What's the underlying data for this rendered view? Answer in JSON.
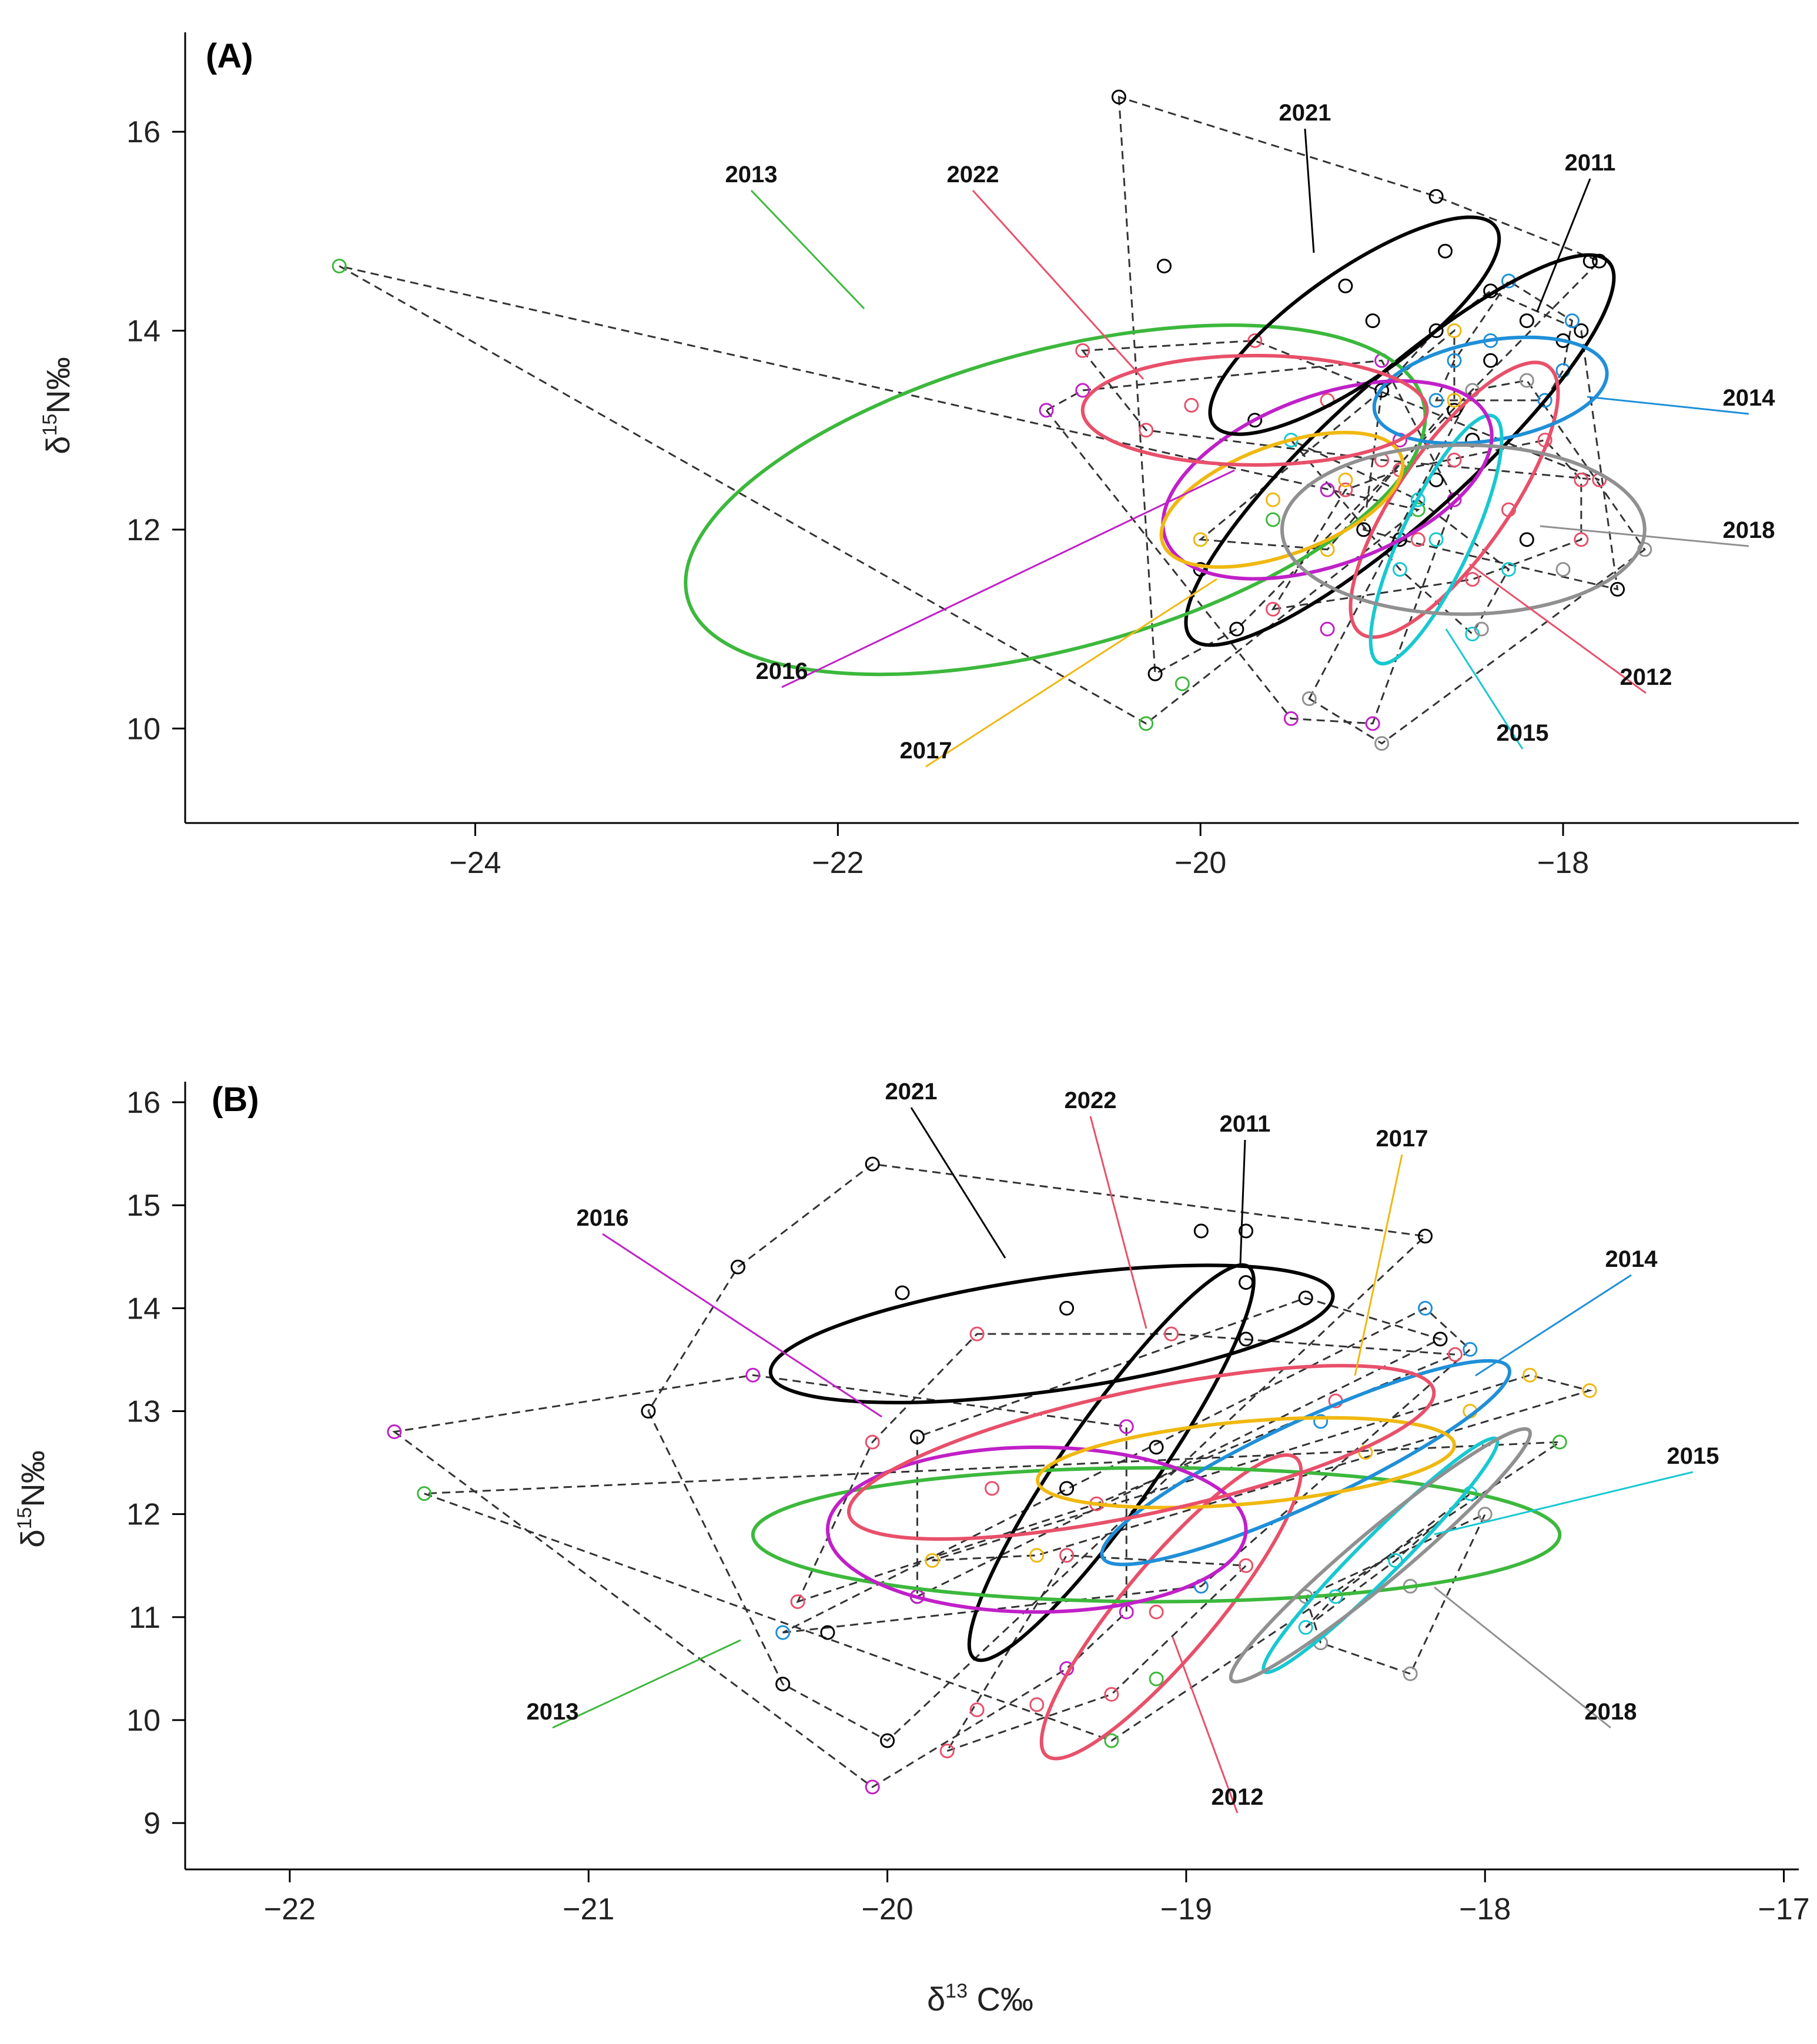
{
  "chart_data": [
    {
      "type": "scatter",
      "panel_label": "(A)",
      "xlabel": "",
      "ylabel": "δ15N‰",
      "xlim": [
        -25.6,
        -16.7
      ],
      "ylim": [
        9.05,
        17.0
      ],
      "xticks": [
        -24,
        -22,
        -20,
        -18
      ],
      "yticks": [
        10,
        12,
        14,
        16
      ],
      "xtick_labels": [
        "−24",
        "−22",
        "−20",
        "−18"
      ],
      "ytick_labels": [
        "10",
        "12",
        "14",
        "16"
      ],
      "series": [
        {
          "name": "2011",
          "color": "#000000",
          "ellipse": {
            "cx": -18.9,
            "cy": 12.8,
            "rx": 1.55,
            "ry": 0.7,
            "angle_deg": -42
          },
          "points": [
            [
              -18.7,
              14.0
            ],
            [
              -18.4,
              13.7
            ],
            [
              -18.2,
              14.1
            ],
            [
              -18.0,
              13.9
            ],
            [
              -18.5,
              12.9
            ],
            [
              -18.7,
              12.5
            ],
            [
              -19.1,
              12.0
            ],
            [
              -18.9,
              11.9
            ],
            [
              -18.2,
              11.9
            ],
            [
              -17.7,
              11.4
            ],
            [
              -18.6,
              13.2
            ],
            [
              -19.0,
              13.4
            ],
            [
              -18.4,
              14.4
            ],
            [
              -17.9,
              14.0
            ]
          ]
        },
        {
          "name": "2012",
          "color": "#e8506a",
          "ellipse": {
            "cx": -18.6,
            "cy": 12.3,
            "rx": 0.9,
            "ry": 0.55,
            "angle_deg": -55
          },
          "points": [
            [
              -18.3,
              12.2
            ],
            [
              -18.8,
              11.9
            ],
            [
              -18.9,
              12.6
            ],
            [
              -17.9,
              12.5
            ],
            [
              -18.5,
              11.5
            ],
            [
              -19.2,
              12.4
            ],
            [
              -18.1,
              12.9
            ],
            [
              -19.6,
              11.2
            ],
            [
              -18.6,
              12.7
            ],
            [
              -17.9,
              11.9
            ]
          ]
        },
        {
          "name": "2013",
          "color": "#3cb83c",
          "ellipse": {
            "cx": -20.8,
            "cy": 12.3,
            "rx": 2.1,
            "ry": 1.5,
            "angle_deg": -15
          },
          "points": [
            [
              -24.75,
              14.65
            ],
            [
              -20.3,
              10.05
            ],
            [
              -20.1,
              10.45
            ],
            [
              -19.6,
              12.1
            ],
            [
              -18.8,
              12.2
            ]
          ]
        },
        {
          "name": "2014",
          "color": "#1f8fd8",
          "ellipse": {
            "cx": -18.4,
            "cy": 13.4,
            "rx": 0.65,
            "ry": 0.5,
            "angle_deg": -10
          },
          "points": [
            [
              -18.3,
              14.5
            ],
            [
              -17.95,
              14.1
            ],
            [
              -18.6,
              13.7
            ],
            [
              -18.1,
              13.3
            ],
            [
              -18.4,
              13.9
            ],
            [
              -18.0,
              13.6
            ],
            [
              -18.7,
              13.3
            ]
          ]
        },
        {
          "name": "2015",
          "color": "#18c8d0",
          "ellipse": {
            "cx": -18.7,
            "cy": 11.9,
            "rx": 0.75,
            "ry": 0.35,
            "angle_deg": -65
          },
          "points": [
            [
              -18.5,
              10.95
            ],
            [
              -18.9,
              11.6
            ],
            [
              -18.7,
              11.9
            ],
            [
              -18.3,
              11.6
            ],
            [
              -18.8,
              12.3
            ],
            [
              -19.5,
              12.9
            ]
          ]
        },
        {
          "name": "2016",
          "color": "#c020c8",
          "ellipse": {
            "cx": -19.3,
            "cy": 12.5,
            "rx": 0.95,
            "ry": 0.85,
            "angle_deg": -20
          },
          "points": [
            [
              -20.85,
              13.2
            ],
            [
              -20.65,
              13.4
            ],
            [
              -19.5,
              10.1
            ],
            [
              -18.9,
              12.9
            ],
            [
              -19.3,
              12.4
            ],
            [
              -19.0,
              13.7
            ],
            [
              -18.6,
              12.3
            ],
            [
              -19.3,
              11.0
            ],
            [
              -19.05,
              10.05
            ]
          ]
        },
        {
          "name": "2017",
          "color": "#f0b810",
          "ellipse": {
            "cx": -19.55,
            "cy": 12.3,
            "rx": 0.7,
            "ry": 0.55,
            "angle_deg": -20
          },
          "points": [
            [
              -20.0,
              11.9
            ],
            [
              -19.6,
              12.3
            ],
            [
              -19.2,
              12.5
            ],
            [
              -18.6,
              14.0
            ],
            [
              -19.3,
              11.8
            ],
            [
              -18.6,
              13.3
            ]
          ]
        },
        {
          "name": "2018",
          "color": "#909090",
          "ellipse": {
            "cx": -18.55,
            "cy": 12.0,
            "rx": 1.0,
            "ry": 0.85,
            "angle_deg": 0
          },
          "points": [
            [
              -17.55,
              11.8
            ],
            [
              -18.0,
              11.6
            ],
            [
              -18.45,
              11.0
            ],
            [
              -19.0,
              9.85
            ],
            [
              -19.4,
              10.3
            ],
            [
              -18.5,
              13.4
            ],
            [
              -18.2,
              13.5
            ]
          ]
        },
        {
          "name": "2021",
          "color": "#000000",
          "ellipse": {
            "cx": -19.15,
            "cy": 14.05,
            "rx": 0.95,
            "ry": 0.55,
            "angle_deg": -35
          },
          "points": [
            [
              -20.45,
              16.35
            ],
            [
              -20.2,
              14.65
            ],
            [
              -19.2,
              14.45
            ],
            [
              -19.05,
              14.1
            ],
            [
              -18.7,
              15.35
            ],
            [
              -18.65,
              14.8
            ],
            [
              -17.85,
              14.7
            ],
            [
              -17.8,
              14.7
            ],
            [
              -19.7,
              13.1
            ],
            [
              -20.0,
              11.6
            ],
            [
              -19.8,
              11.0
            ],
            [
              -20.25,
              10.55
            ]
          ]
        },
        {
          "name": "2022",
          "color": "#e8506a",
          "ellipse": {
            "cx": -19.7,
            "cy": 13.2,
            "rx": 0.95,
            "ry": 0.55,
            "angle_deg": 0
          },
          "points": [
            [
              -20.65,
              13.8
            ],
            [
              -20.3,
              13.0
            ],
            [
              -20.05,
              13.25
            ],
            [
              -19.7,
              13.9
            ],
            [
              -19.3,
              13.3
            ],
            [
              -19.0,
              12.7
            ],
            [
              -17.8,
              12.5
            ]
          ]
        }
      ],
      "annotations": [
        {
          "series": "2013",
          "text": "2013"
        },
        {
          "series": "2022",
          "text": "2022"
        },
        {
          "series": "2021",
          "text": "2021"
        },
        {
          "series": "2011",
          "text": "2011"
        },
        {
          "series": "2014",
          "text": "2014"
        },
        {
          "series": "2018",
          "text": "2018"
        },
        {
          "series": "2012",
          "text": "2012"
        },
        {
          "series": "2015",
          "text": "2015"
        },
        {
          "series": "2016",
          "text": "2016"
        },
        {
          "series": "2017",
          "text": "2017"
        }
      ]
    },
    {
      "type": "scatter",
      "panel_label": "(B)",
      "xlabel": "δ13C‰",
      "ylabel": "δ15N‰",
      "xlim": [
        -22.35,
        -16.95
      ],
      "ylim": [
        8.55,
        16.2
      ],
      "xticks": [
        -22,
        -21,
        -20,
        -19,
        -18,
        -17
      ],
      "yticks": [
        9,
        10,
        11,
        12,
        13,
        14,
        15,
        16
      ],
      "xtick_labels": [
        "−22",
        "−21",
        "−20",
        "−19",
        "−18",
        "−17"
      ],
      "ytick_labels": [
        "9",
        "10",
        "11",
        "12",
        "13",
        "14",
        "15",
        "16"
      ],
      "series": [
        {
          "name": "2011",
          "color": "#000000",
          "ellipse": {
            "cx": -19.25,
            "cy": 12.5,
            "rx": 0.8,
            "ry": 0.45,
            "angle_deg": -55
          },
          "points": [
            [
              -19.9,
              12.75
            ],
            [
              -19.4,
              12.25
            ],
            [
              -19.1,
              12.65
            ],
            [
              -18.8,
              13.7
            ],
            [
              -18.6,
              14.1
            ],
            [
              -18.15,
              13.7
            ],
            [
              -19.9,
              11.2
            ]
          ]
        },
        {
          "name": "2012",
          "color": "#e8506a",
          "ellipse": {
            "cx": -19.05,
            "cy": 11.1,
            "rx": 0.65,
            "ry": 0.45,
            "angle_deg": -50
          },
          "points": [
            [
              -19.7,
              10.1
            ],
            [
              -19.5,
              10.15
            ],
            [
              -19.25,
              10.25
            ],
            [
              -19.1,
              11.05
            ],
            [
              -18.8,
              11.5
            ],
            [
              -19.8,
              9.7
            ],
            [
              -19.4,
              11.6
            ]
          ]
        },
        {
          "name": "2013",
          "color": "#3cb83c",
          "ellipse": {
            "cx": -19.1,
            "cy": 11.8,
            "rx": 1.35,
            "ry": 0.65,
            "angle_deg": 0
          },
          "points": [
            [
              -21.55,
              12.2
            ],
            [
              -19.25,
              9.8
            ],
            [
              -17.75,
              12.7
            ],
            [
              -19.1,
              10.4
            ]
          ]
        },
        {
          "name": "2014",
          "color": "#1f8fd8",
          "ellipse": {
            "cx": -18.6,
            "cy": 12.5,
            "rx": 0.75,
            "ry": 0.4,
            "angle_deg": -25
          },
          "points": [
            [
              -20.35,
              10.85
            ],
            [
              -18.2,
              14.0
            ],
            [
              -18.05,
              13.6
            ],
            [
              -18.55,
              12.9
            ],
            [
              -18.95,
              11.3
            ]
          ]
        },
        {
          "name": "2015",
          "color": "#18c8d0",
          "ellipse": {
            "cx": -18.35,
            "cy": 11.6,
            "rx": 0.55,
            "ry": 0.2,
            "angle_deg": -45
          },
          "points": [
            [
              -18.6,
              10.9
            ],
            [
              -18.5,
              11.2
            ],
            [
              -18.3,
              11.55
            ],
            [
              -18.05,
              12.2
            ]
          ]
        },
        {
          "name": "2016",
          "color": "#c020c8",
          "ellipse": {
            "cx": -19.5,
            "cy": 11.85,
            "rx": 0.7,
            "ry": 0.8,
            "angle_deg": 0
          },
          "points": [
            [
              -21.65,
              12.8
            ],
            [
              -20.45,
              13.35
            ],
            [
              -20.05,
              9.35
            ],
            [
              -19.9,
              11.2
            ],
            [
              -19.4,
              10.5
            ],
            [
              -19.2,
              11.05
            ],
            [
              -19.2,
              12.85
            ]
          ]
        },
        {
          "name": "2017",
          "color": "#f0b810",
          "ellipse": {
            "cx": -18.8,
            "cy": 12.5,
            "rx": 0.7,
            "ry": 0.4,
            "angle_deg": -5
          },
          "points": [
            [
              -19.85,
              11.55
            ],
            [
              -19.5,
              11.6
            ],
            [
              -18.4,
              12.6
            ],
            [
              -18.05,
              13.0
            ],
            [
              -17.85,
              13.35
            ],
            [
              -17.65,
              13.2
            ]
          ]
        },
        {
          "name": "2018",
          "color": "#909090",
          "ellipse": {
            "cx": -18.35,
            "cy": 11.6,
            "rx": 0.65,
            "ry": 0.25,
            "angle_deg": -40
          },
          "points": [
            [
              -18.55,
              10.75
            ],
            [
              -18.25,
              11.3
            ],
            [
              -18.25,
              10.45
            ],
            [
              -18.0,
              12.0
            ],
            [
              -18.6,
              11.2
            ]
          ]
        },
        {
          "name": "2021",
          "color": "#000000",
          "ellipse": {
            "cx": -19.45,
            "cy": 13.75,
            "rx": 0.95,
            "ry": 0.55,
            "angle_deg": -8
          },
          "points": [
            [
              -20.05,
              15.4
            ],
            [
              -20.5,
              14.4
            ],
            [
              -19.95,
              14.15
            ],
            [
              -19.4,
              14.0
            ],
            [
              -18.95,
              14.75
            ],
            [
              -18.8,
              14.75
            ],
            [
              -18.2,
              14.7
            ],
            [
              -18.8,
              14.25
            ],
            [
              -20.8,
              13.0
            ],
            [
              -20.35,
              10.35
            ],
            [
              -20.0,
              9.8
            ],
            [
              -20.2,
              10.85
            ]
          ]
        },
        {
          "name": "2022",
          "color": "#e8506a",
          "ellipse": {
            "cx": -19.15,
            "cy": 12.6,
            "rx": 1.0,
            "ry": 0.6,
            "angle_deg": -12
          },
          "points": [
            [
              -19.7,
              13.75
            ],
            [
              -19.05,
              13.75
            ],
            [
              -20.3,
              11.15
            ],
            [
              -20.05,
              12.7
            ],
            [
              -19.65,
              12.25
            ],
            [
              -19.3,
              12.1
            ],
            [
              -18.5,
              13.1
            ],
            [
              -18.1,
              13.55
            ]
          ]
        }
      ],
      "annotations": [
        {
          "series": "2021",
          "text": "2021"
        },
        {
          "series": "2022",
          "text": "2022"
        },
        {
          "series": "2011",
          "text": "2011"
        },
        {
          "series": "2017",
          "text": "2017"
        },
        {
          "series": "2016",
          "text": "2016"
        },
        {
          "series": "2014",
          "text": "2014"
        },
        {
          "series": "2015",
          "text": "2015"
        },
        {
          "series": "2013",
          "text": "2013"
        },
        {
          "series": "2018",
          "text": "2018"
        },
        {
          "series": "2012",
          "text": "2012"
        }
      ]
    }
  ]
}
